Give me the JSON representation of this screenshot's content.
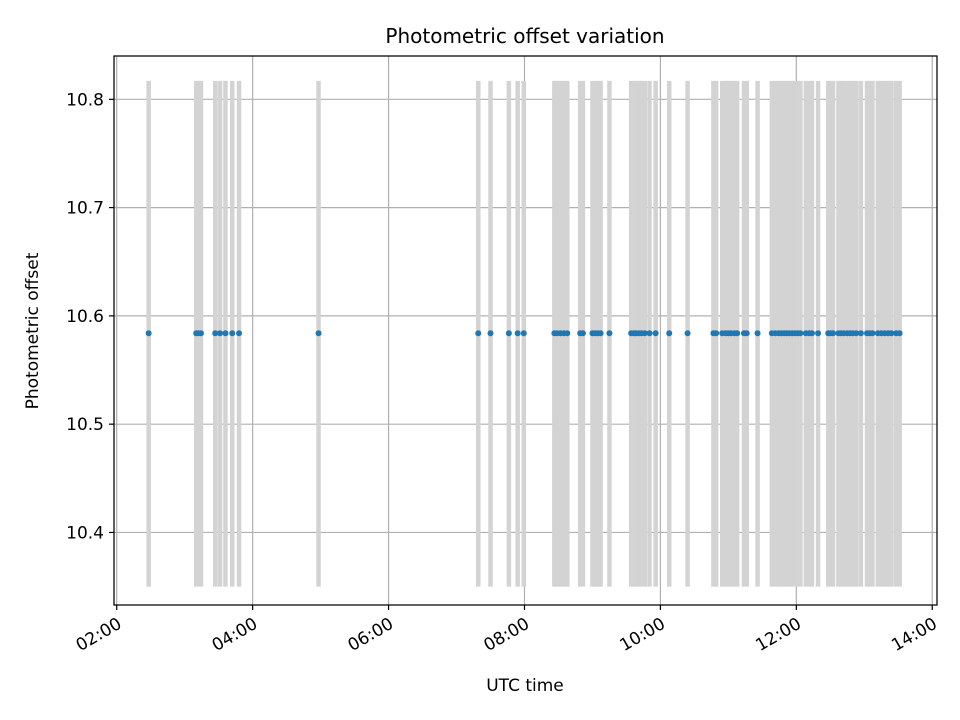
{
  "chart_data": {
    "type": "scatter",
    "title": "Photometric offset variation",
    "xlabel": "UTC time",
    "ylabel": "Photometric offset",
    "x_unit": "hours UTC",
    "xlim": [
      1.96,
      14.07
    ],
    "ylim": [
      10.333,
      10.84
    ],
    "x_ticks": [
      {
        "value": 2,
        "label": "02:00"
      },
      {
        "value": 4,
        "label": "04:00"
      },
      {
        "value": 6,
        "label": "06:00"
      },
      {
        "value": 8,
        "label": "08:00"
      },
      {
        "value": 10,
        "label": "10:00"
      },
      {
        "value": 12,
        "label": "12:00"
      },
      {
        "value": 14,
        "label": "14:00"
      }
    ],
    "y_ticks": [
      {
        "value": 10.4,
        "label": "10.4"
      },
      {
        "value": 10.5,
        "label": "10.5"
      },
      {
        "value": 10.6,
        "label": "10.6"
      },
      {
        "value": 10.7,
        "label": "10.7"
      },
      {
        "value": 10.8,
        "label": "10.8"
      }
    ],
    "grid": true,
    "point_color": "#1f77b4",
    "band_color": "#d3d3d3",
    "band_range": [
      10.35,
      10.817
    ],
    "value": 10.584,
    "times": [
      2.47,
      3.17,
      3.2,
      3.24,
      3.45,
      3.52,
      3.6,
      3.7,
      3.8,
      4.97,
      7.32,
      7.5,
      7.77,
      7.9,
      7.99,
      8.44,
      8.48,
      8.53,
      8.58,
      8.63,
      8.82,
      8.86,
      9.0,
      9.04,
      9.08,
      9.12,
      9.25,
      9.57,
      9.61,
      9.64,
      9.68,
      9.72,
      9.77,
      9.84,
      9.93,
      10.13,
      10.4,
      10.78,
      10.82,
      10.91,
      10.96,
      11.0,
      11.04,
      11.09,
      11.13,
      11.23,
      11.27,
      11.43,
      11.64,
      11.69,
      11.74,
      11.78,
      11.82,
      11.86,
      11.9,
      11.94,
      11.98,
      12.02,
      12.06,
      12.14,
      12.19,
      12.23,
      12.32,
      12.47,
      12.5,
      12.54,
      12.62,
      12.66,
      12.7,
      12.75,
      12.79,
      12.83,
      12.88,
      12.95,
      13.04,
      13.08,
      13.12,
      13.2,
      13.25,
      13.3,
      13.35,
      13.4,
      13.47,
      13.52
    ]
  }
}
